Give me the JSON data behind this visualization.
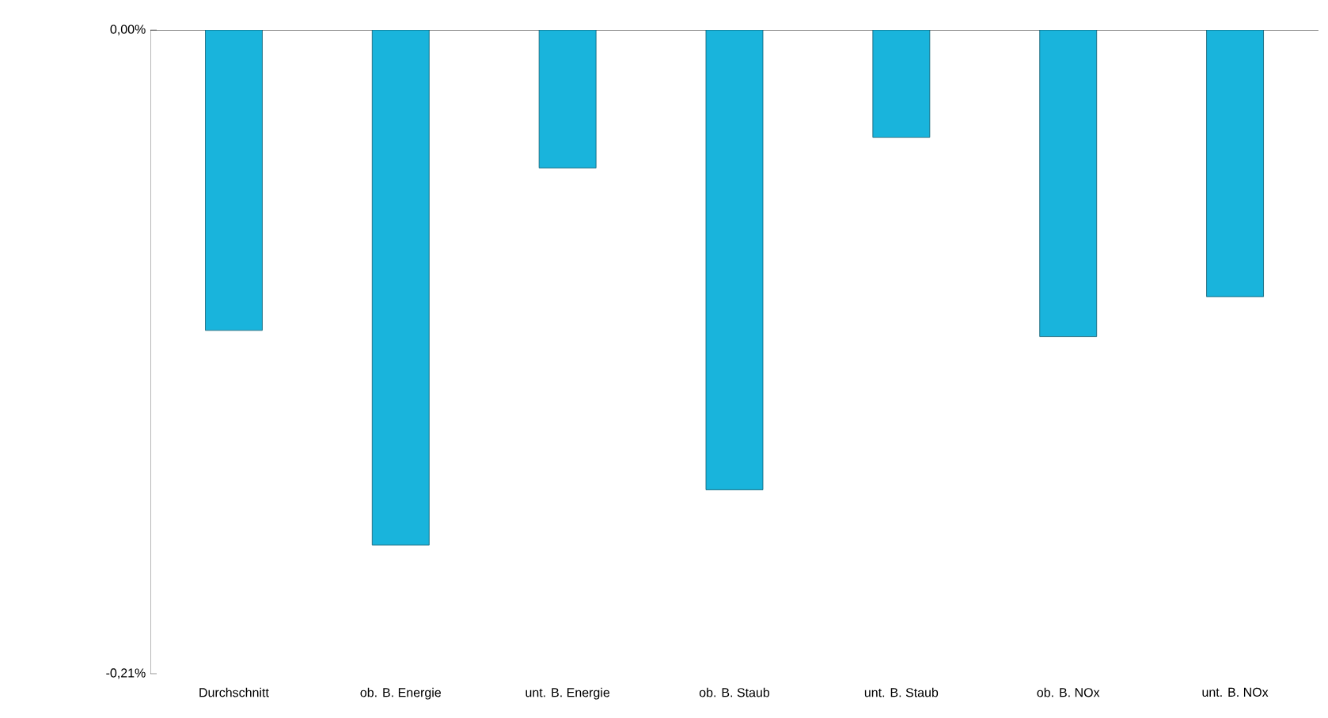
{
  "chart_data": {
    "type": "bar",
    "categories": [
      "Durchschnitt",
      "ob. B. Energie",
      "unt. B. Energie",
      "ob. B. Staub",
      "unt. B. Staub",
      "ob. B. NOx",
      "unt. B. NOx"
    ],
    "values": [
      -0.098,
      -0.168,
      -0.045,
      -0.15,
      -0.035,
      -0.1,
      -0.087
    ],
    "color": "#19b4dc",
    "ylim": [
      -0.21,
      0
    ],
    "yticks": [
      {
        "value": -0.21,
        "label": "-0,21%"
      },
      {
        "value": 0,
        "label": "0,00%"
      }
    ],
    "grid": false
  }
}
